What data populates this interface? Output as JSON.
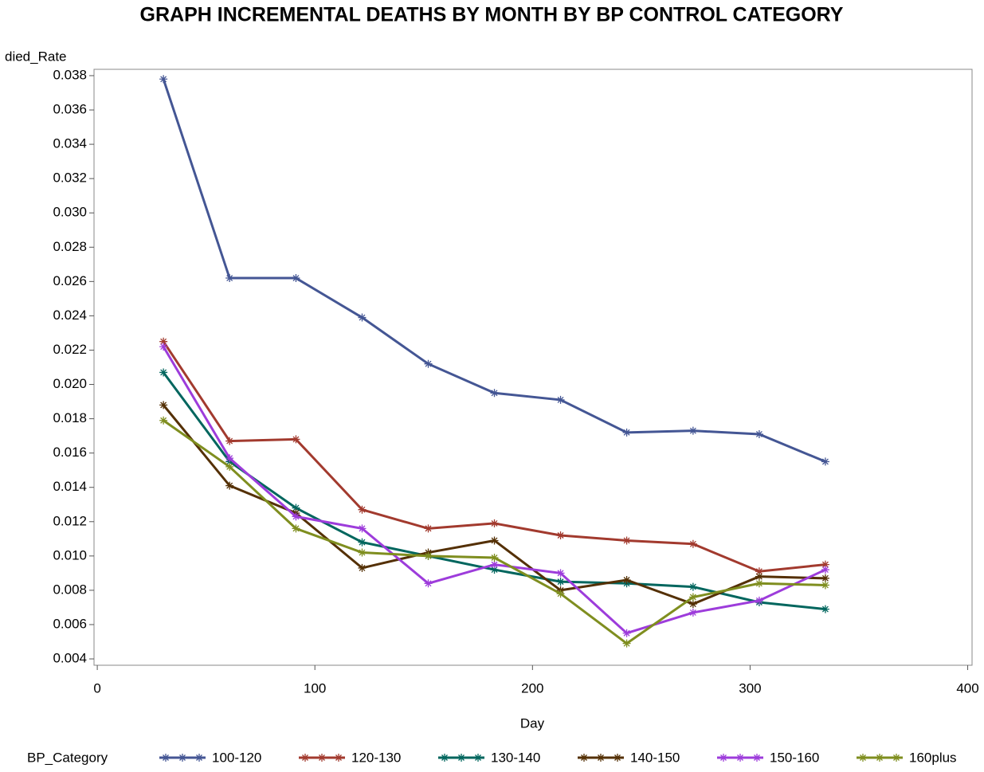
{
  "chart_data": {
    "type": "line",
    "title": "GRAPH INCREMENTAL DEATHS BY MONTH BY BP CONTROL CATEGORY",
    "x_label": "Day",
    "y_label": "died_Rate",
    "legend_title": "BP_Category",
    "x": [
      30.4,
      60.8,
      91.3,
      121.7,
      152.1,
      182.5,
      212.9,
      243.3,
      273.8,
      304.2,
      334.6
    ],
    "series": [
      {
        "name": "100-120",
        "color": "#445694",
        "values": [
          0.0378,
          0.0262,
          0.0262,
          0.0239,
          0.0212,
          0.0195,
          0.0191,
          0.0172,
          0.0173,
          0.0171,
          0.0155
        ]
      },
      {
        "name": "120-130",
        "color": "#a23a2e",
        "values": [
          0.0225,
          0.0167,
          0.0168,
          0.0127,
          0.0116,
          0.0119,
          0.0112,
          0.0109,
          0.0107,
          0.0091,
          0.0095
        ]
      },
      {
        "name": "130-140",
        "color": "#01665e",
        "values": [
          0.0207,
          0.0155,
          0.0128,
          0.0108,
          0.01,
          0.0092,
          0.0085,
          0.0084,
          0.0082,
          0.0073,
          0.0069
        ]
      },
      {
        "name": "140-150",
        "color": "#543005",
        "values": [
          0.0188,
          0.0141,
          0.0125,
          0.0093,
          0.0102,
          0.0109,
          0.008,
          0.0086,
          0.0072,
          0.0088,
          0.0087
        ]
      },
      {
        "name": "150-160",
        "color": "#9d3cdb",
        "values": [
          0.0222,
          0.0157,
          0.0123,
          0.0116,
          0.0084,
          0.0095,
          0.009,
          0.0055,
          0.0067,
          0.0074,
          0.0092
        ]
      },
      {
        "name": "160plus",
        "color": "#7f8e1f",
        "values": [
          0.0179,
          0.0152,
          0.0116,
          0.0102,
          0.01,
          0.0099,
          0.0078,
          0.0049,
          0.0076,
          0.0084,
          0.0083
        ]
      }
    ],
    "xlim": [
      -1.5,
      402
    ],
    "xticks": [
      0,
      100,
      200,
      300,
      400
    ],
    "ylim": [
      0.00363,
      0.03837
    ],
    "yticks": [
      0.004,
      0.006,
      0.008,
      {
        "value": 0.01,
        "label": "0.010"
      },
      0.012,
      0.014,
      0.016,
      0.018,
      {
        "value": 0.02,
        "label": "0.020"
      },
      0.022,
      0.024,
      0.026,
      0.028,
      {
        "value": 0.03,
        "label": "0.030"
      },
      0.032,
      0.034,
      0.036,
      0.038
    ],
    "legend": "bottom"
  }
}
